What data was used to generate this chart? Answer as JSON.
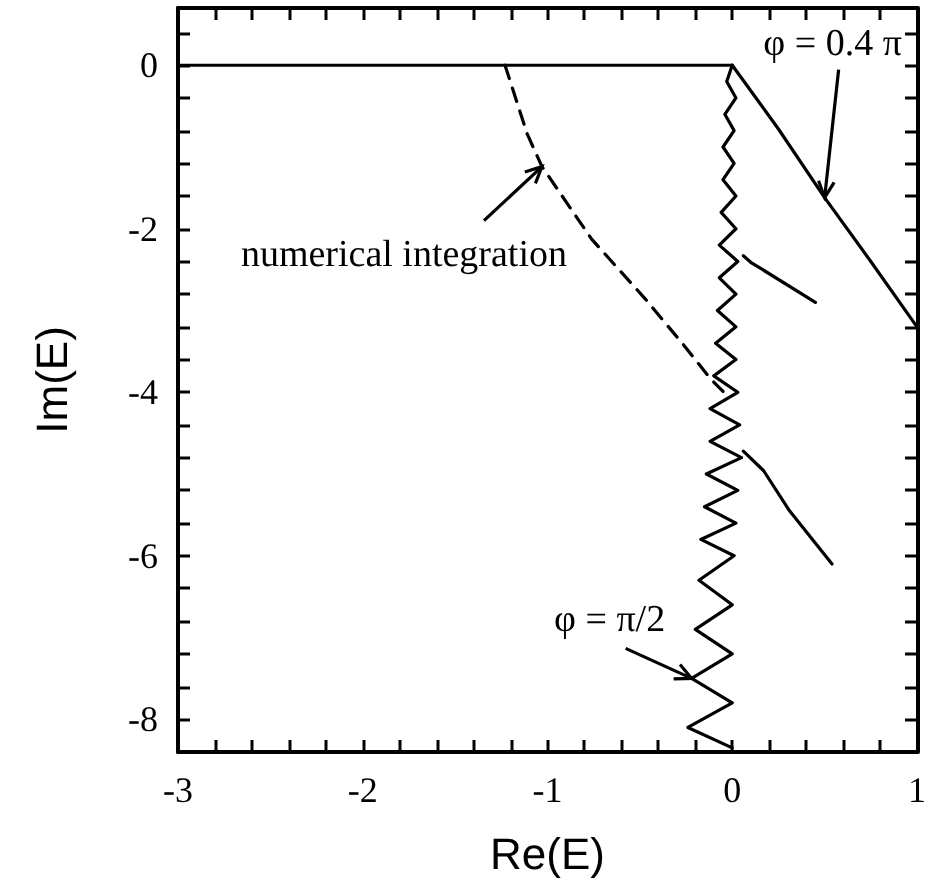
{
  "chart_data": {
    "type": "line",
    "xlabel": "Re(E)",
    "ylabel": "Im(E)",
    "xlim": [
      -3,
      1
    ],
    "ylim": [
      -8.4,
      0.7
    ],
    "xticks": [
      -3,
      {
        "value": -2.8,
        "label": null
      },
      {
        "value": -2.6,
        "label": null
      },
      {
        "value": -2.4,
        "label": null
      },
      {
        "value": -2.2,
        "label": null
      },
      -2,
      {
        "value": -1.8,
        "label": null
      },
      {
        "value": -1.6,
        "label": null
      },
      {
        "value": -1.4,
        "label": null
      },
      {
        "value": -1.2,
        "label": null
      },
      -1,
      {
        "value": -0.8,
        "label": null
      },
      {
        "value": -0.6,
        "label": null
      },
      {
        "value": -0.4,
        "label": null
      },
      {
        "value": -0.2,
        "label": null
      },
      0,
      {
        "value": 0.2,
        "label": null
      },
      {
        "value": 0.4,
        "label": null
      },
      {
        "value": 0.6,
        "label": null
      },
      {
        "value": 0.8,
        "label": null
      },
      1
    ],
    "yticks": [
      -8,
      {
        "value": -7.6,
        "label": null
      },
      {
        "value": -7.2,
        "label": null
      },
      {
        "value": -6.8,
        "label": null
      },
      {
        "value": -6.4,
        "label": null
      },
      -6,
      {
        "value": -5.6,
        "label": null
      },
      {
        "value": -5.2,
        "label": null
      },
      {
        "value": -4.8,
        "label": null
      },
      {
        "value": -4.4,
        "label": null
      },
      -4,
      {
        "value": -3.6,
        "label": null
      },
      {
        "value": -3.2,
        "label": null
      },
      {
        "value": -2.8,
        "label": null
      },
      {
        "value": -2.4,
        "label": null
      },
      -2,
      {
        "value": -1.6,
        "label": null
      },
      {
        "value": -1.2,
        "label": null
      },
      {
        "value": -0.8,
        "label": null
      },
      {
        "value": -0.4,
        "label": null
      },
      0,
      {
        "value": 0.4,
        "label": null
      }
    ],
    "grid": false,
    "marker": "none",
    "series": [
      {
        "color": "#000000",
        "line_style": "solid",
        "x": [
          -3,
          0
        ],
        "values": [
          0,
          0
        ]
      },
      {
        "color": "#000000",
        "line_style": "dashed",
        "x": [
          -1.23,
          -1.11,
          -1.03,
          -0.76,
          -0.47,
          -0.26,
          -0.12,
          -0.05
        ],
        "values": [
          0,
          -0.84,
          -1.24,
          -2.13,
          -2.86,
          -3.43,
          -3.83,
          -3.99
        ]
      },
      {
        "color": "#000000",
        "line_style": "solid",
        "x": [
          0,
          0.25,
          0.5,
          0.75,
          1
        ],
        "values": [
          0,
          -0.78,
          -1.62,
          -2.4,
          -3.2
        ]
      },
      {
        "color": "#000000",
        "line_style": "solid",
        "x": [
          0,
          -0.03,
          0.02,
          -0.04,
          0.01,
          -0.05,
          0.01,
          -0.05,
          0.02,
          -0.06,
          0.02,
          -0.07,
          0.03,
          -0.07,
          0.02,
          -0.08,
          0.02,
          -0.09,
          0.02,
          -0.1,
          0.03,
          -0.12,
          0.04,
          -0.12,
          0.05,
          -0.14,
          0.03,
          -0.15,
          0.02,
          -0.17,
          0.01,
          -0.18,
          0,
          -0.2,
          0,
          -0.22,
          0,
          -0.24,
          0
        ],
        "values": [
          0,
          -0.2,
          -0.4,
          -0.6,
          -0.8,
          -1.0,
          -1.2,
          -1.4,
          -1.6,
          -1.8,
          -2.0,
          -2.2,
          -2.4,
          -2.6,
          -2.8,
          -3.0,
          -3.2,
          -3.4,
          -3.6,
          -3.8,
          -4.0,
          -4.2,
          -4.4,
          -4.6,
          -4.8,
          -5.0,
          -5.2,
          -5.4,
          -5.6,
          -5.8,
          -6.0,
          -6.3,
          -6.6,
          -6.9,
          -7.2,
          -7.5,
          -7.8,
          -8.1,
          -8.35
        ]
      },
      {
        "color": "#000000",
        "line_style": "solid",
        "x": [
          0.06,
          0.1,
          0.45
        ],
        "values": [
          -2.33,
          -2.41,
          -2.9
        ]
      },
      {
        "color": "#000000",
        "line_style": "solid",
        "x": [
          0.06,
          0.17,
          0.31,
          0.54
        ],
        "values": [
          -4.72,
          -4.96,
          -5.45,
          -6.1
        ]
      }
    ],
    "annotations": [
      {
        "text": "numerical integration",
        "x": -1.03,
        "y": -1.24
      },
      {
        "text": "φ = 0.4 π",
        "x": 0.5,
        "y": -1.62
      },
      {
        "text": "φ = π/2",
        "x": -0.22,
        "y": -7.5
      }
    ]
  }
}
